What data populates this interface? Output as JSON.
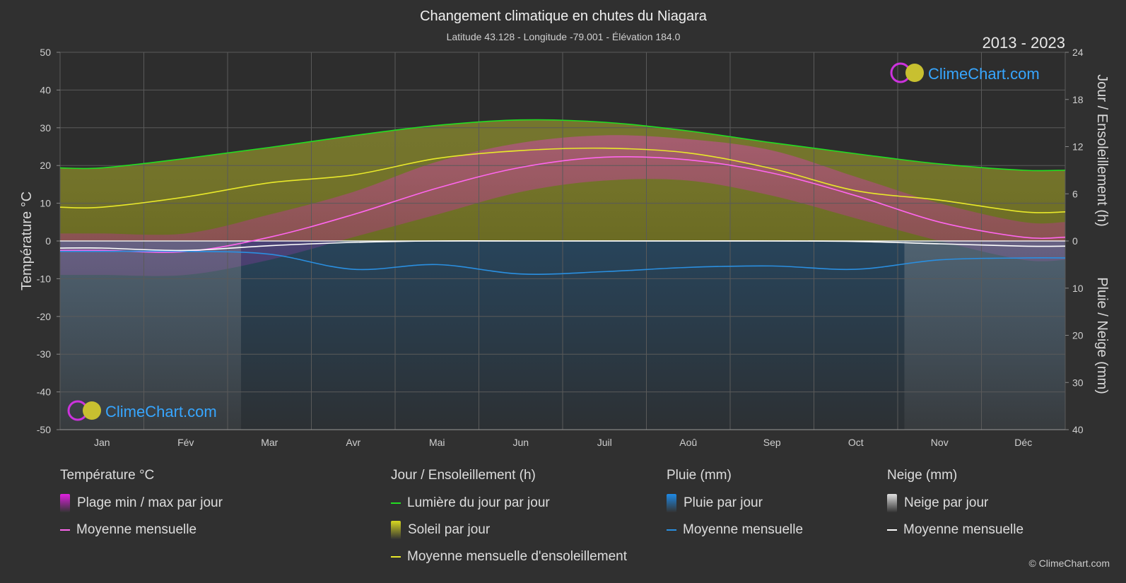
{
  "header": {
    "title": "Changement climatique en chutes du Niagara",
    "subtitle": "Latitude 43.128 - Longitude -79.001 - Élévation 184.0",
    "years": "2013 - 2023"
  },
  "branding": {
    "logo_text": "ClimeChart.com",
    "copyright": "© ClimeChart.com"
  },
  "chart_data": {
    "type": "line",
    "x": [
      "Jan",
      "Fév",
      "Mar",
      "Avr",
      "Mai",
      "Jun",
      "Juil",
      "Aoû",
      "Sep",
      "Oct",
      "Nov",
      "Déc"
    ],
    "y_left": {
      "label": "Température °C",
      "ylim": [
        -50,
        50
      ],
      "ticks": [
        50,
        40,
        30,
        20,
        10,
        0,
        -10,
        -20,
        -30,
        -40,
        -50
      ]
    },
    "y_right_top": {
      "label": "Jour / Ensoleillement (h)",
      "ylim": [
        0,
        24
      ],
      "ticks": [
        24,
        18,
        12,
        6,
        0
      ]
    },
    "y_right_bottom": {
      "label": "Pluie / Neige (mm)",
      "ylim": [
        0,
        40
      ],
      "ticks": [
        0,
        10,
        20,
        30,
        40
      ]
    },
    "grid": true,
    "series": [
      {
        "name": "Lumière du jour par jour",
        "axis": "hours",
        "color": "#22dd22",
        "values": [
          9.3,
          10.5,
          11.9,
          13.4,
          14.7,
          15.4,
          15.1,
          14.0,
          12.5,
          11.1,
          9.8,
          9.0
        ]
      },
      {
        "name": "Moyenne mensuelle d'ensoleillement",
        "axis": "hours",
        "color": "#e8e82a",
        "values": [
          4.3,
          5.6,
          7.4,
          8.4,
          10.5,
          11.5,
          11.8,
          11.2,
          9.2,
          6.4,
          5.2,
          3.7
        ]
      },
      {
        "name": "Moyenne mensuelle",
        "group": "Température °C",
        "axis": "temperature",
        "color": "#ff66ee",
        "values": [
          -2.5,
          -2.8,
          1.0,
          7.0,
          14.0,
          19.5,
          22.2,
          21.5,
          18.0,
          12.0,
          5.0,
          1.0
        ]
      },
      {
        "name": "Moyenne mensuelle",
        "group": "Pluie (mm)",
        "axis": "precip",
        "color": "#2a8fe0",
        "values": [
          2.2,
          2.2,
          2.8,
          6.0,
          5.0,
          7.0,
          6.5,
          5.6,
          5.3,
          6.0,
          4.0,
          3.6
        ]
      },
      {
        "name": "Moyenne mensuelle",
        "group": "Neige (mm)",
        "axis": "precip",
        "color": "#ffffff",
        "values": [
          1.5,
          2.0,
          1.0,
          0.3,
          0.0,
          0.0,
          0.0,
          0.0,
          0.0,
          0.1,
          0.6,
          1.1
        ]
      }
    ],
    "temp_daily_range": {
      "min": [
        -9,
        -9,
        -5,
        1,
        7,
        13,
        16,
        16,
        12,
        6,
        0,
        -5
      ],
      "max": [
        2,
        2,
        7,
        13,
        21,
        26,
        28,
        27,
        24,
        17,
        10,
        5
      ]
    }
  },
  "legend": [
    {
      "header": "Température °C",
      "items": [
        {
          "label": "Plage min / max par jour",
          "type": "box",
          "color": "#e020e0"
        },
        {
          "label": "Moyenne mensuelle",
          "type": "line",
          "color": "#ff66ee"
        }
      ]
    },
    {
      "header": "Jour / Ensoleillement (h)",
      "items": [
        {
          "label": "Lumière du jour par jour",
          "type": "line",
          "color": "#22dd22"
        },
        {
          "label": "Soleil par jour",
          "type": "box",
          "color": "#d8d820"
        },
        {
          "label": "Moyenne mensuelle d'ensoleillement",
          "type": "line",
          "color": "#e8e82a"
        }
      ]
    },
    {
      "header": "Pluie (mm)",
      "items": [
        {
          "label": "Pluie par jour",
          "type": "box",
          "color": "#1e8ae6"
        },
        {
          "label": "Moyenne mensuelle",
          "type": "line",
          "color": "#2a8fe0"
        }
      ]
    },
    {
      "header": "Neige (mm)",
      "items": [
        {
          "label": "Neige par jour",
          "type": "box",
          "color": "#e0e0e0"
        },
        {
          "label": "Moyenne mensuelle",
          "type": "line",
          "color": "#ffffff"
        }
      ]
    }
  ]
}
